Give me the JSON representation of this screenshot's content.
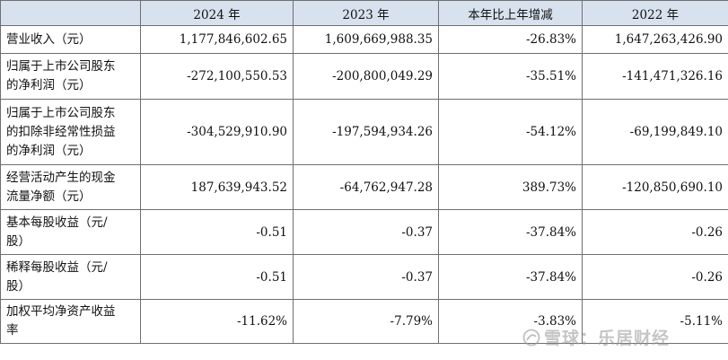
{
  "header": [
    "",
    "2024 年",
    "2023 年",
    "本年比上年增减",
    "2022 年"
  ],
  "rows": [
    {
      "label": [
        "营业收入（元）"
      ],
      "values": [
        "1,177,846,602.65",
        "1,609,669,988.35",
        "-26.83%",
        "1,647,263,426.90"
      ]
    },
    {
      "label": [
        "归属于上市公司股东",
        "的净利润（元）"
      ],
      "values": [
        "-272,100,550.53",
        "-200,800,049.29",
        "-35.51%",
        "-141,471,326.16"
      ]
    },
    {
      "label": [
        "归属于上市公司股东",
        "的扣除非经常性损益",
        "的净利润（元）"
      ],
      "values": [
        "-304,529,910.90",
        "-197,594,934.26",
        "-54.12%",
        "-69,199,849.10"
      ]
    },
    {
      "label": [
        "经营活动产生的现金",
        "流量净额（元）"
      ],
      "values": [
        "187,639,943.52",
        "-64,762,947.28",
        "389.73%",
        "-120,850,690.10"
      ]
    },
    {
      "label": [
        "基本每股收益（元/",
        "股）"
      ],
      "values": [
        "-0.51",
        "-0.37",
        "-37.84%",
        "-0.26"
      ]
    },
    {
      "label": [
        "稀释每股收益（元/",
        "股）"
      ],
      "values": [
        "-0.51",
        "-0.37",
        "-37.84%",
        "-0.26"
      ]
    },
    {
      "label": [
        "加权平均净资产收益",
        "率"
      ],
      "values": [
        "-11.62%",
        "-7.79%",
        "-3.83%",
        "-5.11%"
      ]
    }
  ],
  "watermark": {
    "text": "雪球：乐居财经",
    "icon": "snowball-icon"
  }
}
